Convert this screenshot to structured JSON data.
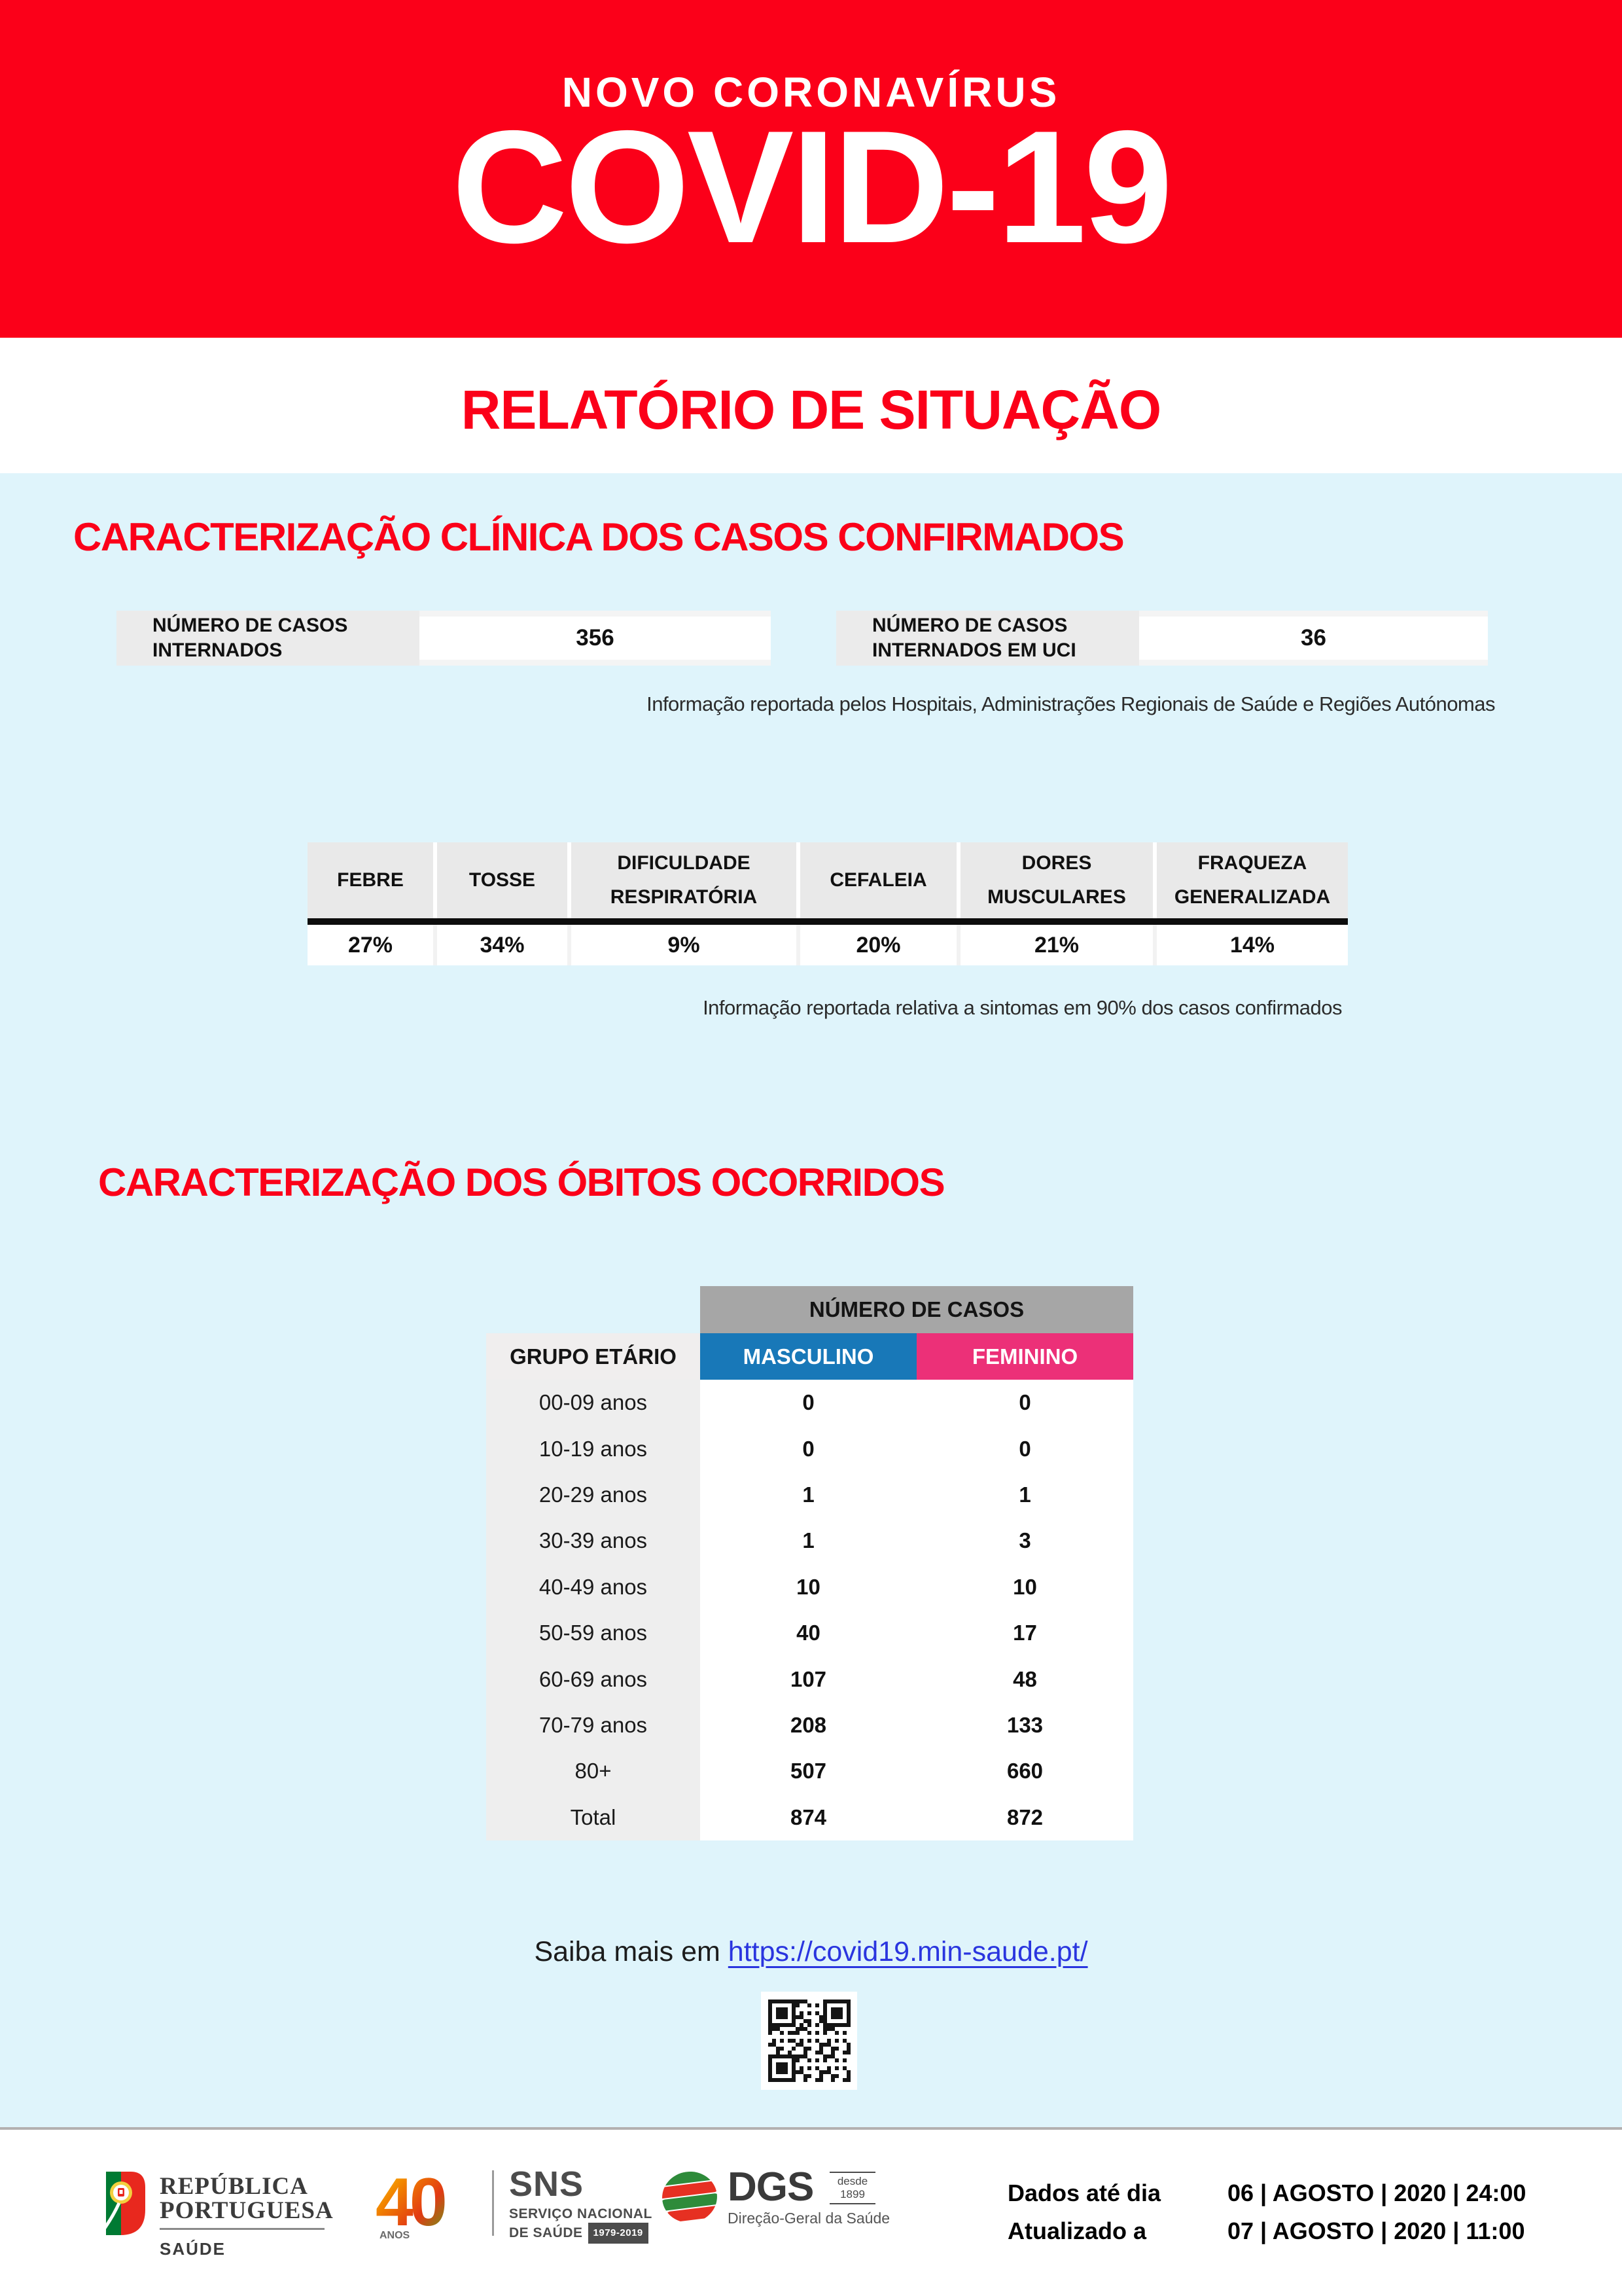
{
  "header": {
    "kicker": "NOVO CORONAVÍRUS",
    "title": "COVID-19",
    "subtitle": "RELATÓRIO DE SITUAÇÃO"
  },
  "clinical_section": {
    "title": "CARACTERIZAÇÃO CLÍNICA DOS CASOS CONFIRMADOS",
    "stats": [
      {
        "label": "NÚMERO DE CASOS INTERNADOS",
        "value": "356"
      },
      {
        "label": "NÚMERO DE CASOS INTERNADOS EM UCI",
        "value": "36"
      }
    ],
    "stats_note": "Informação reportada pelos Hospitais, Administrações Regionais de Saúde e Regiões Autónomas",
    "symptoms": [
      {
        "label": "FEBRE",
        "value": "27%"
      },
      {
        "label": "TOSSE",
        "value": "34%"
      },
      {
        "label": "DIFICULDADE RESPIRATÓRIA",
        "value": "9%"
      },
      {
        "label": "CEFALEIA",
        "value": "20%"
      },
      {
        "label": "DORES MUSCULARES",
        "value": "21%"
      },
      {
        "label": "FRAQUEZA GENERALIZADA",
        "value": "14%"
      }
    ],
    "symptoms_note": "Informação reportada relativa a sintomas em 90% dos casos confirmados"
  },
  "deaths_section": {
    "title": "CARACTERIZAÇÃO DOS ÓBITOS OCORRIDOS",
    "table": {
      "group_header": "NÚMERO DE CASOS",
      "row_header": "GRUPO ETÁRIO",
      "col_masculino": "MASCULINO",
      "col_feminino": "FEMININO",
      "rows": [
        {
          "label": "00-09 anos",
          "m": "0",
          "f": "0"
        },
        {
          "label": "10-19 anos",
          "m": "0",
          "f": "0"
        },
        {
          "label": "20-29 anos",
          "m": "1",
          "f": "1"
        },
        {
          "label": "30-39 anos",
          "m": "1",
          "f": "3"
        },
        {
          "label": "40-49 anos",
          "m": "10",
          "f": "10"
        },
        {
          "label": "50-59 anos",
          "m": "40",
          "f": "17"
        },
        {
          "label": "60-69 anos",
          "m": "107",
          "f": "48"
        },
        {
          "label": "70-79 anos",
          "m": "208",
          "f": "133"
        },
        {
          "label": "80+",
          "m": "507",
          "f": "660"
        },
        {
          "label": "Total",
          "m": "874",
          "f": "872"
        }
      ]
    }
  },
  "more_info": {
    "prefix": "Saiba mais em",
    "link": "https://covid19.min-saude.pt/"
  },
  "footer": {
    "republica": {
      "line1": "REPÚBLICA",
      "line2": "PORTUGUESA",
      "sub": "SAÚDE"
    },
    "sns": {
      "anos_number": "40",
      "anos_label": "ANOS",
      "big": "SNS",
      "sub1": "SERVIÇO NACIONAL",
      "sub2": "DE SAÚDE",
      "badge": "1979-2019"
    },
    "dgs": {
      "big": "DGS",
      "desde1": "desde",
      "desde2": "1899",
      "sub": "Direção-Geral da Saúde"
    },
    "dados_ate_label": "Dados até dia",
    "dados_ate_value": "06 | AGOSTO | 2020 | 24:00",
    "atualizado_label": "Atualizado a",
    "atualizado_value": "07 | AGOSTO | 2020 | 11:00"
  },
  "colors": {
    "brand_red": "#fb0019",
    "page_blue_bg": "#dff4fb",
    "male_blue": "#1878b8",
    "female_pink": "#ec3078",
    "table_header_gray": "#a6a6a6",
    "cell_gray": "#eeeeee",
    "link_blue": "#2a35df"
  }
}
